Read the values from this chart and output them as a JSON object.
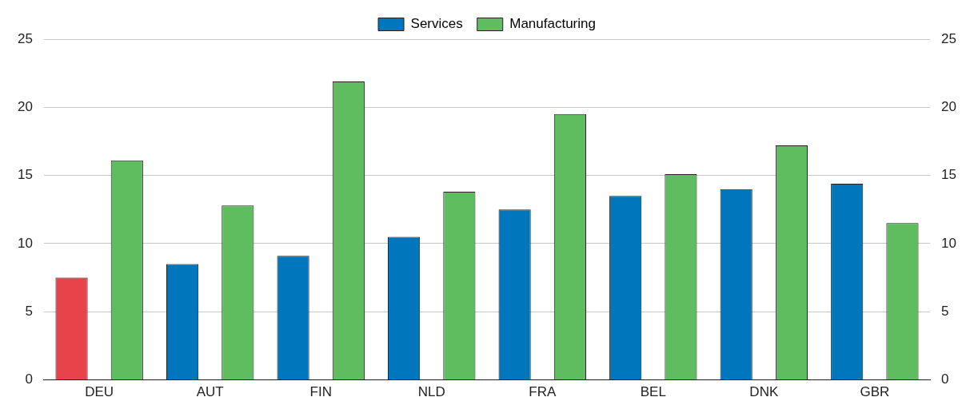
{
  "chart_data": {
    "type": "bar",
    "categories": [
      "DEU",
      "AUT",
      "FIN",
      "NLD",
      "FRA",
      "BEL",
      "DNK",
      "GBR"
    ],
    "series": [
      {
        "name": "Services",
        "color": "#0077bd",
        "colors": [
          "#e8434a",
          "#0077bd",
          "#0077bd",
          "#0077bd",
          "#0077bd",
          "#0077bd",
          "#0077bd",
          "#0077bd"
        ],
        "values": [
          7.5,
          8.5,
          9.1,
          10.5,
          12.5,
          13.5,
          14.0,
          14.4
        ]
      },
      {
        "name": "Manufacturing",
        "color": "#5fbd5f",
        "values": [
          16.1,
          12.8,
          21.9,
          13.8,
          19.5,
          15.1,
          17.2,
          11.5
        ]
      }
    ],
    "ylim": [
      0,
      25
    ],
    "yticks": [
      0,
      5,
      10,
      15,
      20,
      25
    ],
    "y2lim": [
      0,
      25
    ],
    "y2ticks": [
      0,
      5,
      10,
      15,
      20,
      25
    ],
    "grid": "y",
    "legend": "top"
  }
}
